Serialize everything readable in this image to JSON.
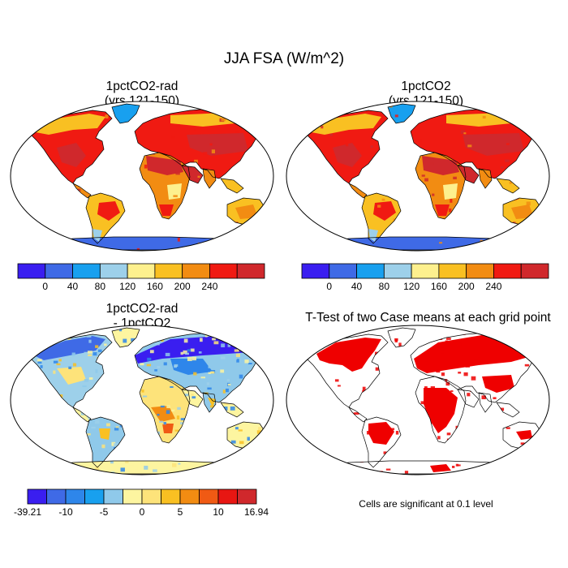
{
  "figure": {
    "title": "JJA FSA (W/m^2)"
  },
  "panels": {
    "top_left": {
      "title_line1": "1pctCO2-rad",
      "title_line2": "(yrs 121-150)"
    },
    "top_right": {
      "title_line1": "1pctCO2",
      "title_line2": "(yrs 121-150)"
    },
    "bottom_left": {
      "title_line1": "1pctCO2-rad",
      "title_line2": "- 1pctCO2"
    },
    "bottom_right": {
      "title_line1": "T-Test of two Case means at each grid point",
      "note": "Cells are significant at 0.1 level"
    }
  },
  "colorbar_abs": {
    "colors": [
      "#3a1ef0",
      "#3f6ae6",
      "#18a0ef",
      "#9dd0ea",
      "#fdf08e",
      "#f9c022",
      "#f28c12",
      "#f01a12",
      "#d0282c"
    ],
    "ticks": [
      "0",
      "40",
      "80",
      "120",
      "160",
      "200",
      "240"
    ]
  },
  "colorbar_diff": {
    "colors": [
      "#3a1ef0",
      "#3f6ae6",
      "#2e86ea",
      "#18a0ef",
      "#8fc9ea",
      "#fdf5a0",
      "#fde37a",
      "#f9c022",
      "#f28c12",
      "#f05a14",
      "#e81612",
      "#d0282c"
    ],
    "ticks": [
      "-39.21",
      "-10",
      "-5",
      "0",
      "5",
      "10",
      "16.94"
    ]
  },
  "colors": {
    "ocean": "#ffffff",
    "ttest_significant": "#ef0000",
    "coast": "#000000"
  }
}
